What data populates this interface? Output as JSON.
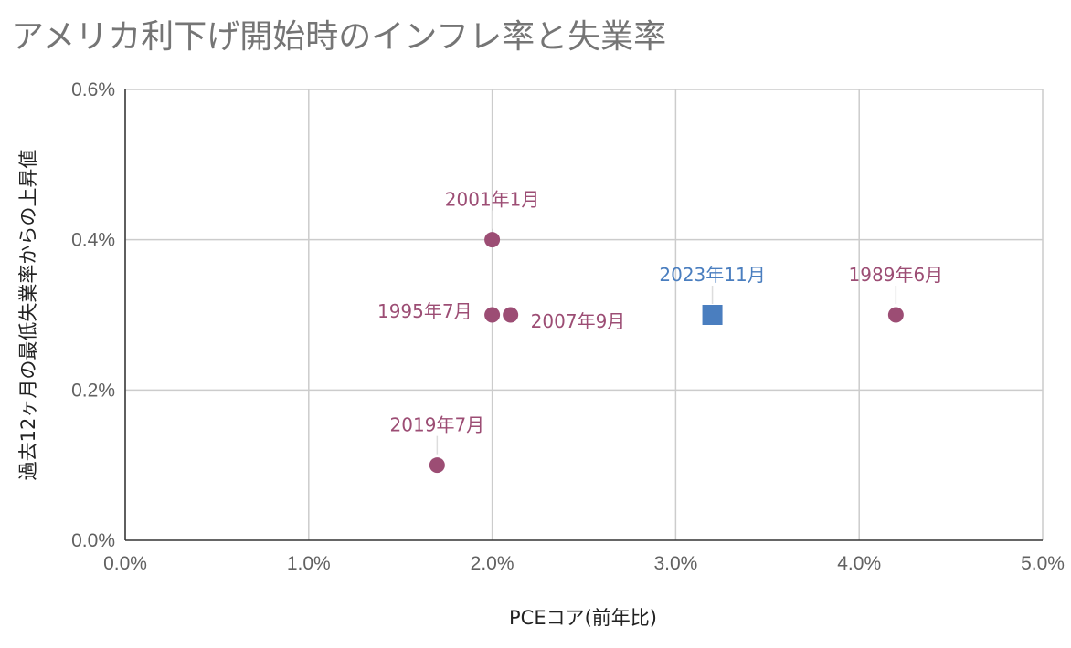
{
  "chart_data": {
    "type": "scatter",
    "title": "アメリカ利下げ開始時のインフレ率と失業率",
    "xlabel": "PCEコア(前年比)",
    "ylabel": "過去12ヶ月の最低失業率からの上昇値",
    "xlim": [
      0,
      5
    ],
    "ylim": [
      0,
      0.6
    ],
    "x_ticks": [
      "0.0%",
      "1.0%",
      "2.0%",
      "3.0%",
      "4.0%",
      "5.0%"
    ],
    "y_ticks": [
      "0.0%",
      "0.2%",
      "0.4%",
      "0.6%"
    ],
    "grid": true,
    "colors": {
      "historical": "#9c4d74",
      "current": "#4a7ebf"
    },
    "points": [
      {
        "label": "2001年1月",
        "x": 2.0,
        "y": 0.4,
        "group": "historical",
        "marker": "circle",
        "label_pos": "above"
      },
      {
        "label": "1995年7月",
        "x": 2.0,
        "y": 0.3,
        "group": "historical",
        "marker": "circle",
        "label_pos": "left"
      },
      {
        "label": "2007年9月",
        "x": 2.1,
        "y": 0.3,
        "group": "historical",
        "marker": "circle",
        "label_pos": "right"
      },
      {
        "label": "2023年11月",
        "x": 3.2,
        "y": 0.3,
        "group": "current",
        "marker": "square",
        "label_pos": "above"
      },
      {
        "label": "1989年6月",
        "x": 4.2,
        "y": 0.3,
        "group": "historical",
        "marker": "circle",
        "label_pos": "above"
      },
      {
        "label": "2019年7月",
        "x": 1.7,
        "y": 0.1,
        "group": "historical",
        "marker": "circle",
        "label_pos": "above"
      }
    ]
  }
}
